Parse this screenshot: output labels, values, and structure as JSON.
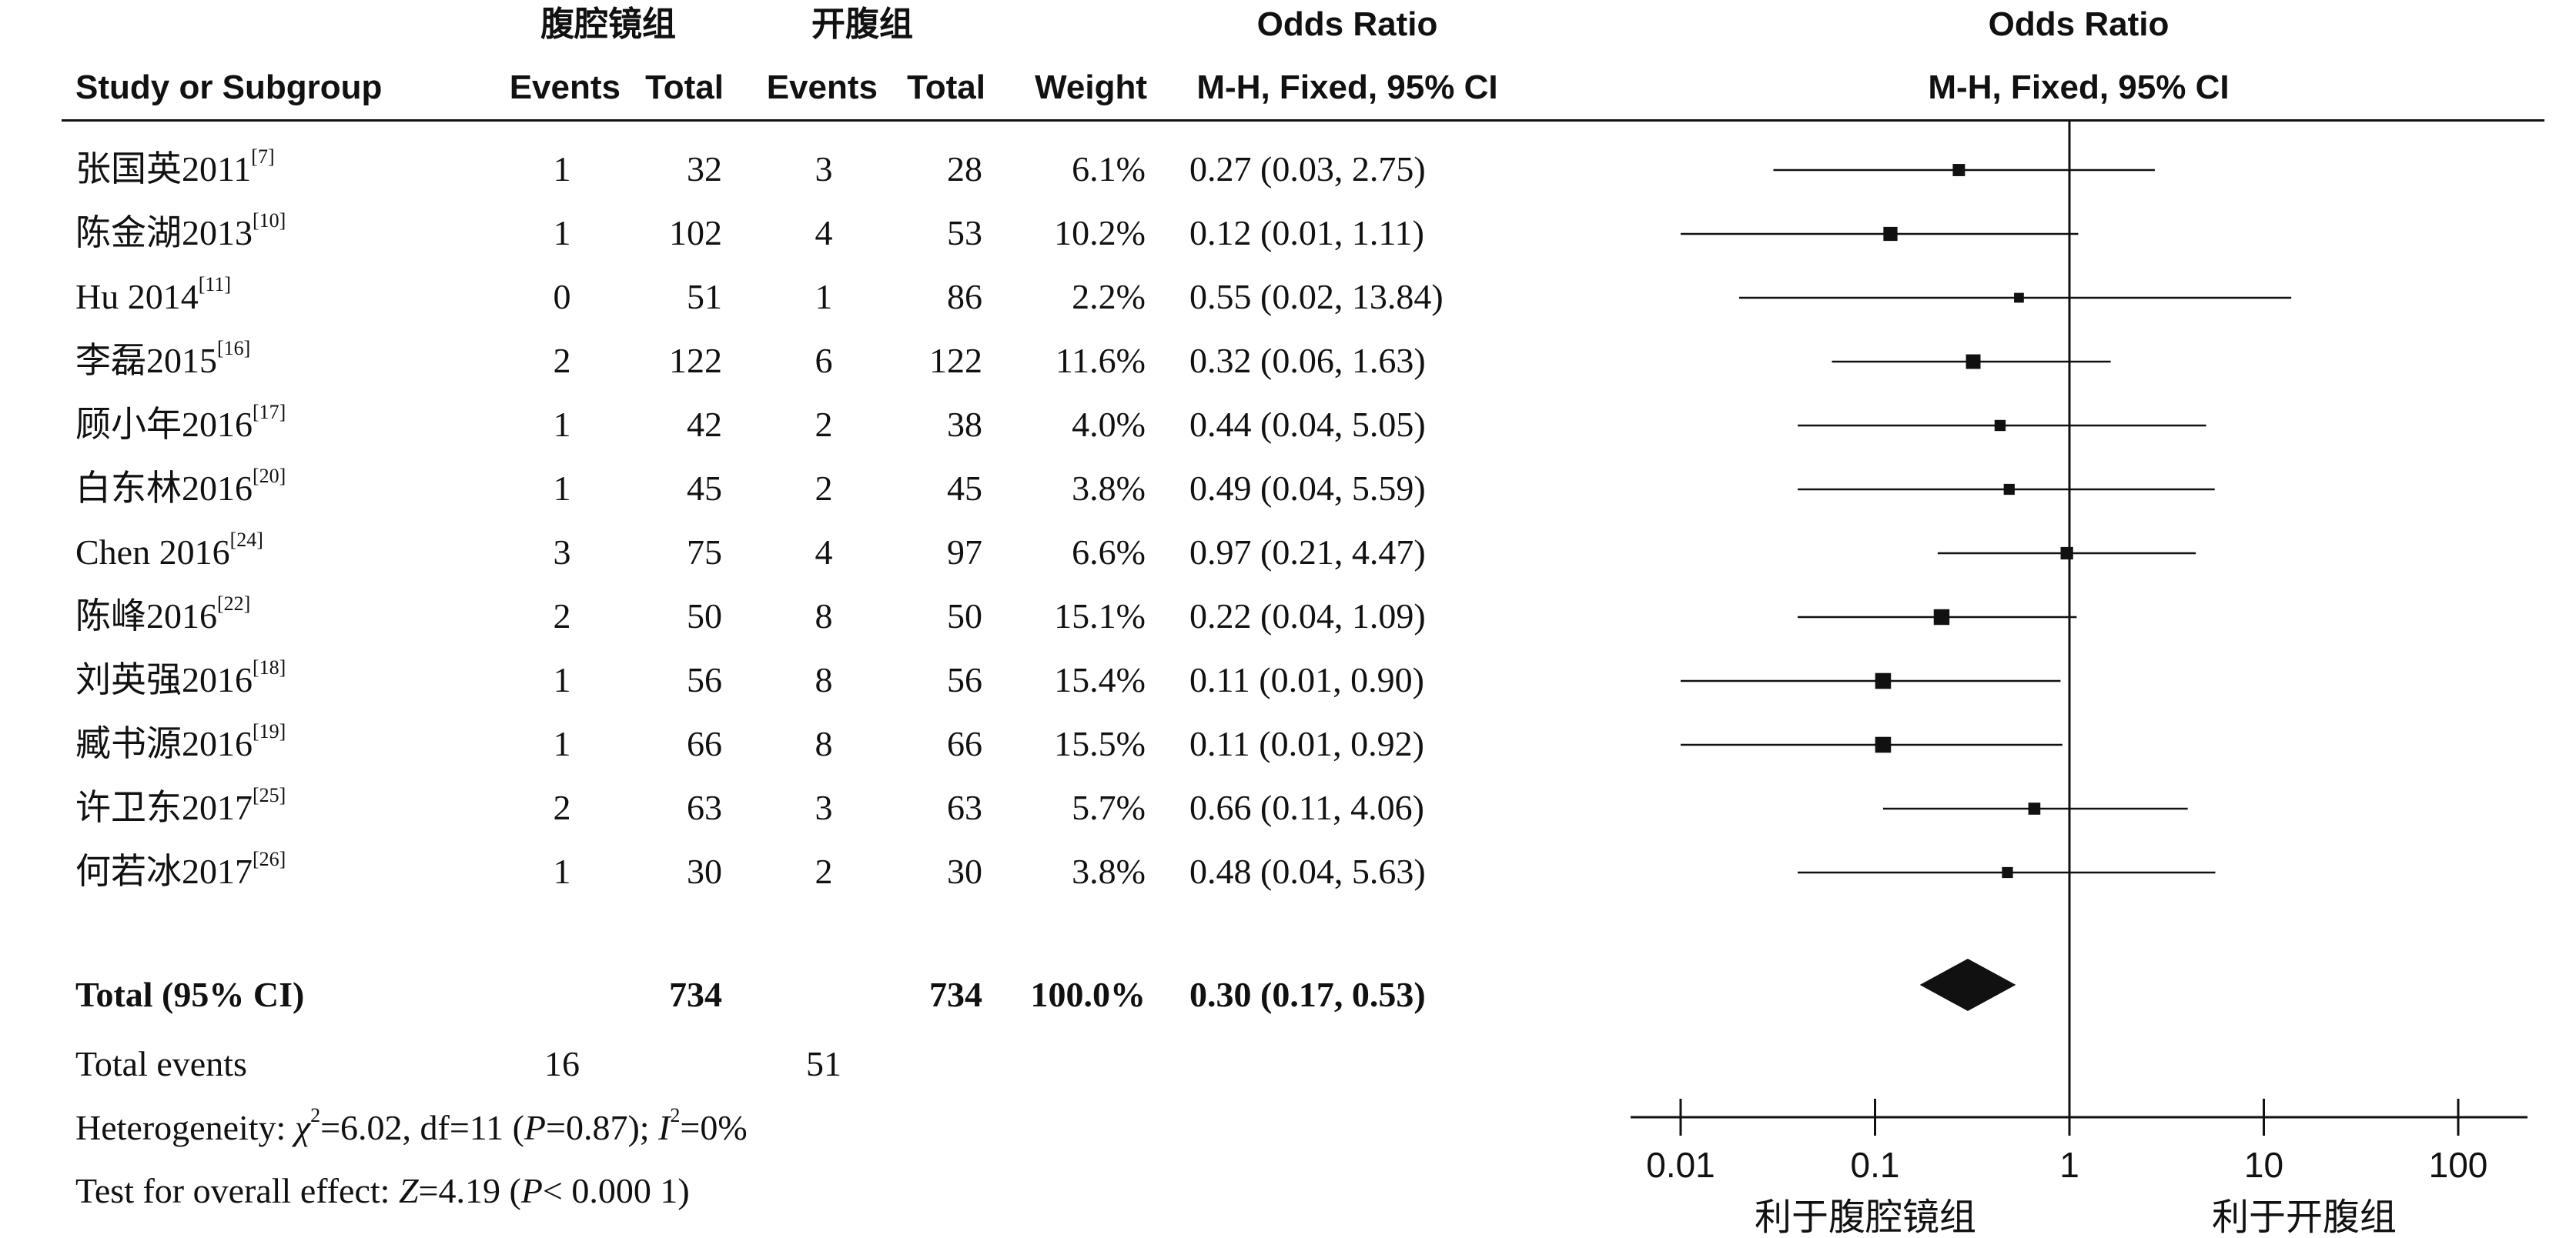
{
  "header": {
    "group_left": "腹腔镜组",
    "group_right": "开腹组",
    "odds_ratio": "Odds Ratio",
    "odds_ratio_plot": "Odds Ratio",
    "study_col": "Study or Subgroup",
    "events_left": "Events",
    "total_left": "Total",
    "events_right": "Events",
    "total_right": "Total",
    "weight": "Weight",
    "method": "M-H, Fixed, 95% CI",
    "method_plot": "M-H, Fixed, 95% CI"
  },
  "studies": [
    {
      "name": "张国英2011",
      "ref": "[7]",
      "e1": "1",
      "t1": "32",
      "e2": "3",
      "t2": "28",
      "weight": "6.1%",
      "or_text": "0.27 (0.03, 2.75)"
    },
    {
      "name": "陈金湖2013",
      "ref": "[10]",
      "e1": "1",
      "t1": "102",
      "e2": "4",
      "t2": "53",
      "weight": "10.2%",
      "or_text": "0.12 (0.01, 1.11)"
    },
    {
      "name": "Hu 2014",
      "ref": "[11]",
      "e1": "0",
      "t1": "51",
      "e2": "1",
      "t2": "86",
      "weight": "2.2%",
      "or_text": "0.55 (0.02, 13.84)"
    },
    {
      "name": "李磊2015",
      "ref": "[16]",
      "e1": "2",
      "t1": "122",
      "e2": "6",
      "t2": "122",
      "weight": "11.6%",
      "or_text": "0.32 (0.06, 1.63)"
    },
    {
      "name": "顾小年2016",
      "ref": "[17]",
      "e1": "1",
      "t1": "42",
      "e2": "2",
      "t2": "38",
      "weight": "4.0%",
      "or_text": "0.44 (0.04, 5.05)"
    },
    {
      "name": "白东林2016",
      "ref": "[20]",
      "e1": "1",
      "t1": "45",
      "e2": "2",
      "t2": "45",
      "weight": "3.8%",
      "or_text": "0.49 (0.04, 5.59)"
    },
    {
      "name": "Chen 2016",
      "ref": "[24]",
      "e1": "3",
      "t1": "75",
      "e2": "4",
      "t2": "97",
      "weight": "6.6%",
      "or_text": "0.97 (0.21, 4.47)"
    },
    {
      "name": "陈峰2016",
      "ref": "[22]",
      "e1": "2",
      "t1": "50",
      "e2": "8",
      "t2": "50",
      "weight": "15.1%",
      "or_text": "0.22 (0.04, 1.09)"
    },
    {
      "name": "刘英强2016",
      "ref": "[18]",
      "e1": "1",
      "t1": "56",
      "e2": "8",
      "t2": "56",
      "weight": "15.4%",
      "or_text": "0.11 (0.01, 0.90)"
    },
    {
      "name": "臧书源2016",
      "ref": "[19]",
      "e1": "1",
      "t1": "66",
      "e2": "8",
      "t2": "66",
      "weight": "15.5%",
      "or_text": "0.11 (0.01, 0.92)"
    },
    {
      "name": "许卫东2017",
      "ref": "[25]",
      "e1": "2",
      "t1": "63",
      "e2": "3",
      "t2": "63",
      "weight": "5.7%",
      "or_text": "0.66 (0.11, 4.06)"
    },
    {
      "name": "何若冰2017",
      "ref": "[26]",
      "e1": "1",
      "t1": "30",
      "e2": "2",
      "t2": "30",
      "weight": "3.8%",
      "or_text": "0.48 (0.04, 5.63)"
    }
  ],
  "total": {
    "label": "Total (95% CI)",
    "t1": "734",
    "t2": "734",
    "weight": "100.0%",
    "or_text": "0.30 (0.17, 0.53)"
  },
  "events": {
    "label": "Total events",
    "e1": "16",
    "e2": "51"
  },
  "heterogeneity": {
    "prefix": "Heterogeneity: ",
    "chi_symbol": "χ",
    "chi_sup": "2",
    "chi_rest": "=6.02, df=11 (",
    "p_symbol": "P",
    "p_rest": "=0.87); ",
    "i_symbol": "I",
    "i_sup": "2",
    "i_rest": "=0%"
  },
  "overall": {
    "prefix": "Test for overall effect: ",
    "z_symbol": "Z",
    "z_rest": "=4.19 (",
    "p_symbol": "P",
    "p_rest": "< 0.000 1)"
  },
  "axis": {
    "tick_labels": [
      "0.01",
      "0.1",
      "1",
      "10",
      "100"
    ],
    "favours_left": "利于腹腔镜组",
    "favours_right": "利于开腹组"
  },
  "chart_data": {
    "type": "forest",
    "scale": "log",
    "xlim": [
      0.01,
      100
    ],
    "x_ticks": [
      0.01,
      0.1,
      1,
      10,
      100
    ],
    "null_line": 1,
    "studies": [
      {
        "label": "张国英2011",
        "or": 0.27,
        "lo": 0.03,
        "hi": 2.75,
        "weight": 6.1
      },
      {
        "label": "陈金湖2013",
        "or": 0.12,
        "lo": 0.01,
        "hi": 1.11,
        "weight": 10.2
      },
      {
        "label": "Hu 2014",
        "or": 0.55,
        "lo": 0.02,
        "hi": 13.84,
        "weight": 2.2
      },
      {
        "label": "李磊2015",
        "or": 0.32,
        "lo": 0.06,
        "hi": 1.63,
        "weight": 11.6
      },
      {
        "label": "顾小年2016",
        "or": 0.44,
        "lo": 0.04,
        "hi": 5.05,
        "weight": 4.0
      },
      {
        "label": "白东林2016",
        "or": 0.49,
        "lo": 0.04,
        "hi": 5.59,
        "weight": 3.8
      },
      {
        "label": "Chen 2016",
        "or": 0.97,
        "lo": 0.21,
        "hi": 4.47,
        "weight": 6.6
      },
      {
        "label": "陈峰2016",
        "or": 0.22,
        "lo": 0.04,
        "hi": 1.09,
        "weight": 15.1
      },
      {
        "label": "刘英强2016",
        "or": 0.11,
        "lo": 0.01,
        "hi": 0.9,
        "weight": 15.4
      },
      {
        "label": "臧书源2016",
        "or": 0.11,
        "lo": 0.01,
        "hi": 0.92,
        "weight": 15.5
      },
      {
        "label": "许卫东2017",
        "or": 0.66,
        "lo": 0.11,
        "hi": 4.06,
        "weight": 5.7
      },
      {
        "label": "何若冰2017",
        "or": 0.48,
        "lo": 0.04,
        "hi": 5.63,
        "weight": 3.8
      }
    ],
    "pooled": {
      "label": "Total (95% CI)",
      "or": 0.3,
      "lo": 0.17,
      "hi": 0.53
    }
  }
}
